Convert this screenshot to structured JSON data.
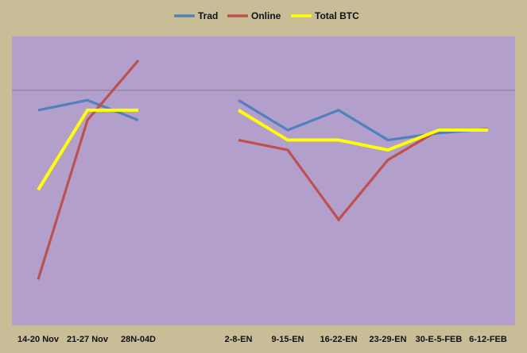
{
  "colors": {
    "page_background": "#c8bd96",
    "plot_background": "#b39fcb",
    "reference_line": "#8a7f86"
  },
  "chart_data": {
    "type": "line",
    "categories": [
      "14-20 Nov",
      "21-27 Nov",
      "28N-04D",
      "",
      "",
      "2-8-EN",
      "9-15-EN",
      "16-22-EN",
      "23-29-EN",
      "30-E-5-FEB",
      "6-12-FEB"
    ],
    "series": [
      {
        "name": "Trad",
        "color": "#4f81bd",
        "values": [
          86,
          96,
          76,
          null,
          null,
          96,
          66,
          86,
          56,
          63,
          67
        ]
      },
      {
        "name": "Online",
        "color": "#c0504d",
        "values": [
          -84,
          76,
          136,
          null,
          null,
          56,
          46,
          -24,
          36,
          66,
          66
        ]
      },
      {
        "name": "Total BTC",
        "color": "#ffff00",
        "values": [
          6,
          86,
          86,
          null,
          null,
          86,
          56,
          56,
          46,
          66,
          66
        ]
      }
    ],
    "ylim": [
      -130,
      160
    ],
    "reference_line_y": 106,
    "legend_position": "top",
    "title": "",
    "xlabel": "",
    "ylabel": "",
    "grid": false
  }
}
